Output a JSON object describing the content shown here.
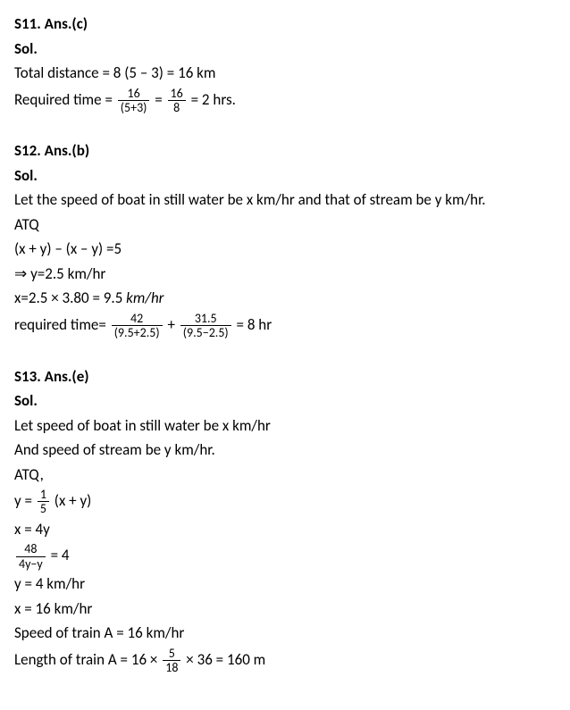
{
  "q11": {
    "header": "S11. Ans.(c)",
    "sol": "Sol.",
    "line1_prefix": "Total distance = 8 (5 – 3) = 16 km",
    "line2_prefix": "Required time = ",
    "frac1_num": "16",
    "frac1_den": "(5+3)",
    "mid1": " = ",
    "frac2_num": "16",
    "frac2_den": "8",
    "suffix1": " = 2 hrs."
  },
  "q12": {
    "header": "S12. Ans.(b)",
    "sol": "Sol.",
    "line1": "Let the speed of boat in still water be x km/hr and that of stream be y km/hr.",
    "line2": "ATQ",
    "line3": "(x + y) – (x – y) =5",
    "line4": "⇒ y=2.5 km/hr",
    "line5_prefix": "x=2.5 × 3.80 = 9.5 ",
    "line5_suffix": "km/hr",
    "line6_prefix": "required time= ",
    "frac1_num": "42",
    "frac1_den": "(9.5+2.5)",
    "mid1": " + ",
    "frac2_num": "31.5",
    "frac2_den": "(9.5−2.5)",
    "suffix1": " = 8 hr"
  },
  "q13": {
    "header": "S13. Ans.(e)",
    "sol": "Sol.",
    "line1": "Let speed of boat in still water be x km/hr",
    "line2": "And speed of stream be y km/hr.",
    "line3": "ATQ,",
    "line4_prefix": "y = ",
    "frac1_num": "1",
    "frac1_den": "5",
    "line4_suffix": " (x + y)",
    "line5": "x = 4y",
    "frac2_num": "48",
    "frac2_den": "4y−y",
    "line6_suffix": " = 4",
    "line7": "y = 4 km/hr",
    "line8": "x = 16 km/hr",
    "line9": "Speed of train A = 16 km/hr",
    "line10_prefix": "Length of train A = 16 × ",
    "frac3_num": "5",
    "frac3_den": "18",
    "line10_suffix": " × 36 = 160 m"
  }
}
